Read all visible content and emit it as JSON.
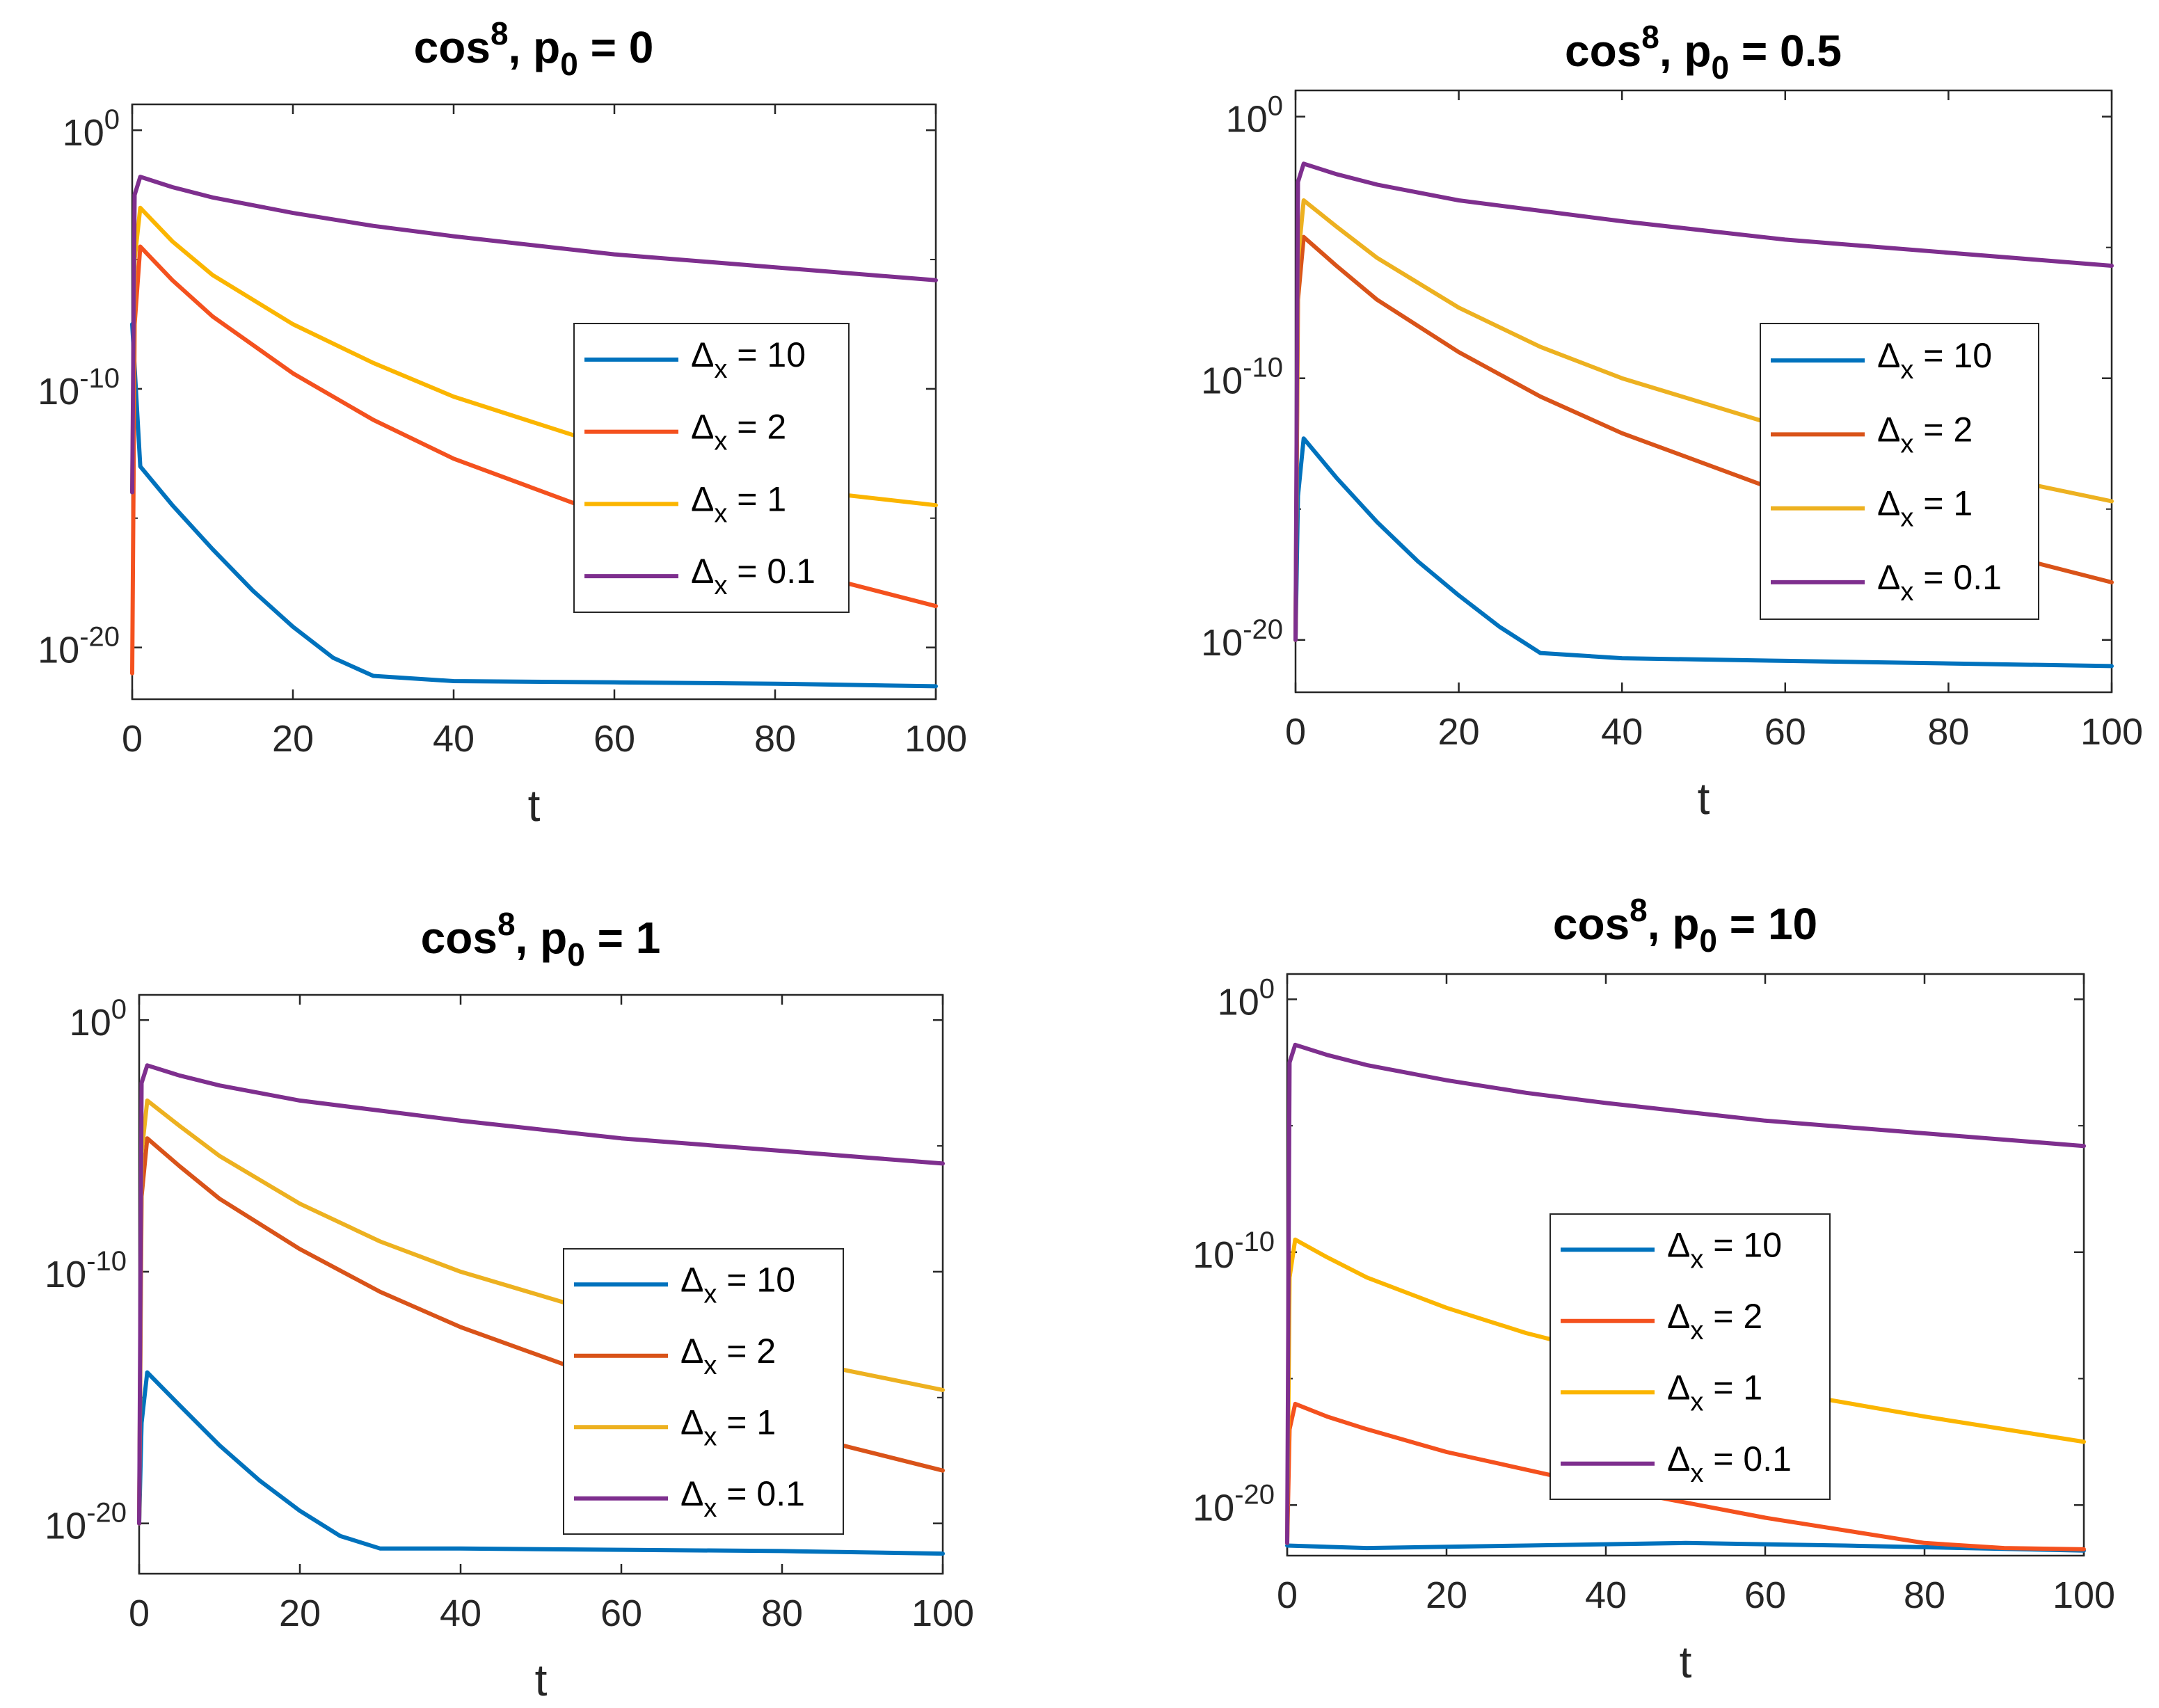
{
  "figure_title": "",
  "chart_data": [
    {
      "type": "line",
      "title_main": "cos",
      "title_sup": "8",
      "title_comma": ", ",
      "title_p": "p",
      "title_sub": "0",
      "title_value": " = 0",
      "xlabel": "t",
      "xlim": [
        0,
        100
      ],
      "ylim_exp": [
        -22,
        1
      ],
      "xticks": [
        "0",
        "20",
        "40",
        "60",
        "80",
        "100"
      ],
      "yticks": [
        {
          "base": "10",
          "exp": "0",
          "v": 0
        },
        {
          "base": "10",
          "exp": "-10",
          "v": -10
        },
        {
          "base": "10",
          "exp": "-20",
          "v": -20
        }
      ],
      "legend": {
        "position": "center-right"
      },
      "series": [
        {
          "name_sym": "Δ",
          "name_sub": "x",
          "name_rest": " = 10",
          "color": "#0072BD",
          "points": [
            [
              0,
              -7.5
            ],
            [
              1,
              -13.0
            ],
            [
              5,
              -14.5
            ],
            [
              10,
              -16.2
            ],
            [
              15,
              -17.8
            ],
            [
              20,
              -19.2
            ],
            [
              25,
              -20.4
            ],
            [
              30,
              -21.1
            ],
            [
              40,
              -21.3
            ],
            [
              60,
              -21.35
            ],
            [
              80,
              -21.4
            ],
            [
              100,
              -21.5
            ]
          ]
        },
        {
          "name_sym": "Δ",
          "name_sub": "x",
          "name_rest": " = 2",
          "color": "#F4511E",
          "points": [
            [
              0,
              -21.0
            ],
            [
              0.3,
              -7.5
            ],
            [
              1,
              -4.5
            ],
            [
              5,
              -5.8
            ],
            [
              10,
              -7.2
            ],
            [
              20,
              -9.4
            ],
            [
              30,
              -11.2
            ],
            [
              40,
              -12.7
            ],
            [
              60,
              -15.0
            ],
            [
              80,
              -16.8
            ],
            [
              100,
              -18.4
            ]
          ]
        },
        {
          "name_sym": "Δ",
          "name_sub": "x",
          "name_rest": " = 1",
          "color": "#FBB500",
          "points": [
            [
              0,
              -14.0
            ],
            [
              0.3,
              -5.0
            ],
            [
              1,
              -3.0
            ],
            [
              5,
              -4.3
            ],
            [
              10,
              -5.6
            ],
            [
              20,
              -7.5
            ],
            [
              30,
              -9.0
            ],
            [
              40,
              -10.3
            ],
            [
              60,
              -12.3
            ],
            [
              80,
              -13.8
            ],
            [
              100,
              -14.5
            ]
          ]
        },
        {
          "name_sym": "Δ",
          "name_sub": "x",
          "name_rest": " = 0.1",
          "color": "#7E2F8E",
          "points": [
            [
              0,
              -14.0
            ],
            [
              0.3,
              -2.5
            ],
            [
              1,
              -1.8
            ],
            [
              5,
              -2.2
            ],
            [
              10,
              -2.6
            ],
            [
              20,
              -3.2
            ],
            [
              30,
              -3.7
            ],
            [
              40,
              -4.1
            ],
            [
              60,
              -4.8
            ],
            [
              80,
              -5.3
            ],
            [
              100,
              -5.8
            ]
          ]
        }
      ]
    },
    {
      "type": "line",
      "title_main": "cos",
      "title_sup": "8",
      "title_comma": ", ",
      "title_p": "p",
      "title_sub": "0",
      "title_value": " = 0.5",
      "xlabel": "t",
      "xlim": [
        0,
        100
      ],
      "ylim_exp": [
        -22,
        1
      ],
      "xticks": [
        "0",
        "20",
        "40",
        "60",
        "80",
        "100"
      ],
      "yticks": [
        {
          "base": "10",
          "exp": "0",
          "v": 0
        },
        {
          "base": "10",
          "exp": "-10",
          "v": -10
        },
        {
          "base": "10",
          "exp": "-20",
          "v": -20
        }
      ],
      "legend": {
        "position": "center-right"
      },
      "series": [
        {
          "name_sym": "Δ",
          "name_sub": "x",
          "name_rest": " = 10",
          "color": "#0072BD",
          "points": [
            [
              0,
              -20.0
            ],
            [
              0.3,
              -14.5
            ],
            [
              1,
              -12.3
            ],
            [
              5,
              -13.8
            ],
            [
              10,
              -15.5
            ],
            [
              15,
              -17.0
            ],
            [
              20,
              -18.3
            ],
            [
              25,
              -19.5
            ],
            [
              30,
              -20.5
            ],
            [
              40,
              -20.7
            ],
            [
              60,
              -20.8
            ],
            [
              80,
              -20.9
            ],
            [
              100,
              -21.0
            ]
          ]
        },
        {
          "name_sym": "Δ",
          "name_sub": "x",
          "name_rest": " = 2",
          "color": "#D95319",
          "points": [
            [
              0,
              -20.0
            ],
            [
              0.3,
              -7.0
            ],
            [
              1,
              -4.6
            ],
            [
              5,
              -5.7
            ],
            [
              10,
              -7.0
            ],
            [
              20,
              -9.0
            ],
            [
              30,
              -10.7
            ],
            [
              40,
              -12.1
            ],
            [
              60,
              -14.4
            ],
            [
              80,
              -16.2
            ],
            [
              100,
              -17.8
            ]
          ]
        },
        {
          "name_sym": "Δ",
          "name_sub": "x",
          "name_rest": " = 1",
          "color": "#EDB120",
          "points": [
            [
              0,
              -20.0
            ],
            [
              0.3,
              -5.5
            ],
            [
              1,
              -3.2
            ],
            [
              5,
              -4.2
            ],
            [
              10,
              -5.4
            ],
            [
              20,
              -7.3
            ],
            [
              30,
              -8.8
            ],
            [
              40,
              -10.0
            ],
            [
              60,
              -11.9
            ],
            [
              80,
              -13.4
            ],
            [
              100,
              -14.7
            ]
          ]
        },
        {
          "name_sym": "Δ",
          "name_sub": "x",
          "name_rest": " = 0.1",
          "color": "#7E2F8E",
          "points": [
            [
              0,
              -20.0
            ],
            [
              0.3,
              -2.5
            ],
            [
              1,
              -1.8
            ],
            [
              5,
              -2.2
            ],
            [
              10,
              -2.6
            ],
            [
              20,
              -3.2
            ],
            [
              30,
              -3.6
            ],
            [
              40,
              -4.0
            ],
            [
              60,
              -4.7
            ],
            [
              80,
              -5.2
            ],
            [
              100,
              -5.7
            ]
          ]
        }
      ]
    },
    {
      "type": "line",
      "title_main": "cos",
      "title_sup": "8",
      "title_comma": ", ",
      "title_p": "p",
      "title_sub": "0",
      "title_value": " = 1",
      "xlabel": "t",
      "xlim": [
        0,
        100
      ],
      "ylim_exp": [
        -22,
        1
      ],
      "xticks": [
        "0",
        "20",
        "40",
        "60",
        "80",
        "100"
      ],
      "yticks": [
        {
          "base": "10",
          "exp": "0",
          "v": 0
        },
        {
          "base": "10",
          "exp": "-10",
          "v": -10
        },
        {
          "base": "10",
          "exp": "-20",
          "v": -20
        }
      ],
      "legend": {
        "position": "center-right"
      },
      "series": [
        {
          "name_sym": "Δ",
          "name_sub": "x",
          "name_rest": " = 10",
          "color": "#0072BD",
          "points": [
            [
              0,
              -20.0
            ],
            [
              0.3,
              -16.0
            ],
            [
              1,
              -14.0
            ],
            [
              5,
              -15.3
            ],
            [
              10,
              -16.9
            ],
            [
              15,
              -18.3
            ],
            [
              20,
              -19.5
            ],
            [
              25,
              -20.5
            ],
            [
              30,
              -21.0
            ],
            [
              40,
              -21.0
            ],
            [
              60,
              -21.05
            ],
            [
              80,
              -21.1
            ],
            [
              100,
              -21.2
            ]
          ]
        },
        {
          "name_sym": "Δ",
          "name_sub": "x",
          "name_rest": " = 2",
          "color": "#D95319",
          "points": [
            [
              0,
              -20.0
            ],
            [
              0.3,
              -7.0
            ],
            [
              1,
              -4.7
            ],
            [
              5,
              -5.8
            ],
            [
              10,
              -7.1
            ],
            [
              20,
              -9.1
            ],
            [
              30,
              -10.8
            ],
            [
              40,
              -12.2
            ],
            [
              60,
              -14.5
            ],
            [
              80,
              -16.3
            ],
            [
              100,
              -17.9
            ]
          ]
        },
        {
          "name_sym": "Δ",
          "name_sub": "x",
          "name_rest": " = 1",
          "color": "#EDB120",
          "points": [
            [
              0,
              -20.0
            ],
            [
              0.3,
              -5.3
            ],
            [
              1,
              -3.2
            ],
            [
              5,
              -4.2
            ],
            [
              10,
              -5.4
            ],
            [
              20,
              -7.3
            ],
            [
              30,
              -8.8
            ],
            [
              40,
              -10.0
            ],
            [
              60,
              -11.9
            ],
            [
              80,
              -13.4
            ],
            [
              100,
              -14.7
            ]
          ]
        },
        {
          "name_sym": "Δ",
          "name_sub": "x",
          "name_rest": " = 0.1",
          "color": "#7E2F8E",
          "points": [
            [
              0,
              -20.0
            ],
            [
              0.3,
              -2.5
            ],
            [
              1,
              -1.8
            ],
            [
              5,
              -2.2
            ],
            [
              10,
              -2.6
            ],
            [
              20,
              -3.2
            ],
            [
              30,
              -3.6
            ],
            [
              40,
              -4.0
            ],
            [
              60,
              -4.7
            ],
            [
              80,
              -5.2
            ],
            [
              100,
              -5.7
            ]
          ]
        }
      ]
    },
    {
      "type": "line",
      "title_main": "cos",
      "title_sup": "8",
      "title_comma": ",  ",
      "title_p": "p",
      "title_sub": "0",
      "title_value": " = 10",
      "xlabel": "t",
      "xlim": [
        0,
        100
      ],
      "ylim_exp": [
        -22,
        1
      ],
      "xticks": [
        "0",
        "20",
        "40",
        "60",
        "80",
        "100"
      ],
      "yticks": [
        {
          "base": "10",
          "exp": "0",
          "v": 0
        },
        {
          "base": "10",
          "exp": "-10",
          "v": -10
        },
        {
          "base": "10",
          "exp": "-20",
          "v": -20
        }
      ],
      "legend": {
        "position": "center"
      },
      "series": [
        {
          "name_sym": "Δ",
          "name_sub": "x",
          "name_rest": " = 10",
          "color": "#0072BD",
          "points": [
            [
              0,
              -21.6
            ],
            [
              10,
              -21.7
            ],
            [
              30,
              -21.6
            ],
            [
              50,
              -21.5
            ],
            [
              70,
              -21.6
            ],
            [
              85,
              -21.7
            ],
            [
              100,
              -21.8
            ]
          ]
        },
        {
          "name_sym": "Δ",
          "name_sub": "x",
          "name_rest": " = 2",
          "color": "#F4511E",
          "points": [
            [
              0,
              -21.5
            ],
            [
              0.3,
              -17.0
            ],
            [
              1,
              -16.0
            ],
            [
              5,
              -16.5
            ],
            [
              10,
              -17.0
            ],
            [
              20,
              -17.9
            ],
            [
              30,
              -18.6
            ],
            [
              40,
              -19.3
            ],
            [
              50,
              -19.9
            ],
            [
              60,
              -20.5
            ],
            [
              70,
              -21.0
            ],
            [
              80,
              -21.5
            ],
            [
              90,
              -21.7
            ],
            [
              100,
              -21.75
            ]
          ]
        },
        {
          "name_sym": "Δ",
          "name_sub": "x",
          "name_rest": " = 1",
          "color": "#FBB500",
          "points": [
            [
              0,
              -21.5
            ],
            [
              0.3,
              -11.0
            ],
            [
              1,
              -9.5
            ],
            [
              5,
              -10.2
            ],
            [
              10,
              -11.0
            ],
            [
              20,
              -12.2
            ],
            [
              30,
              -13.2
            ],
            [
              40,
              -14.0
            ],
            [
              60,
              -15.4
            ],
            [
              80,
              -16.5
            ],
            [
              100,
              -17.5
            ]
          ]
        },
        {
          "name_sym": "Δ",
          "name_sub": "x",
          "name_rest": " = 0.1",
          "color": "#7E2F8E",
          "points": [
            [
              0,
              -21.5
            ],
            [
              0.3,
              -2.5
            ],
            [
              1,
              -1.8
            ],
            [
              5,
              -2.2
            ],
            [
              10,
              -2.6
            ],
            [
              20,
              -3.2
            ],
            [
              30,
              -3.7
            ],
            [
              40,
              -4.1
            ],
            [
              60,
              -4.8
            ],
            [
              80,
              -5.3
            ],
            [
              100,
              -5.8
            ]
          ]
        }
      ]
    }
  ]
}
